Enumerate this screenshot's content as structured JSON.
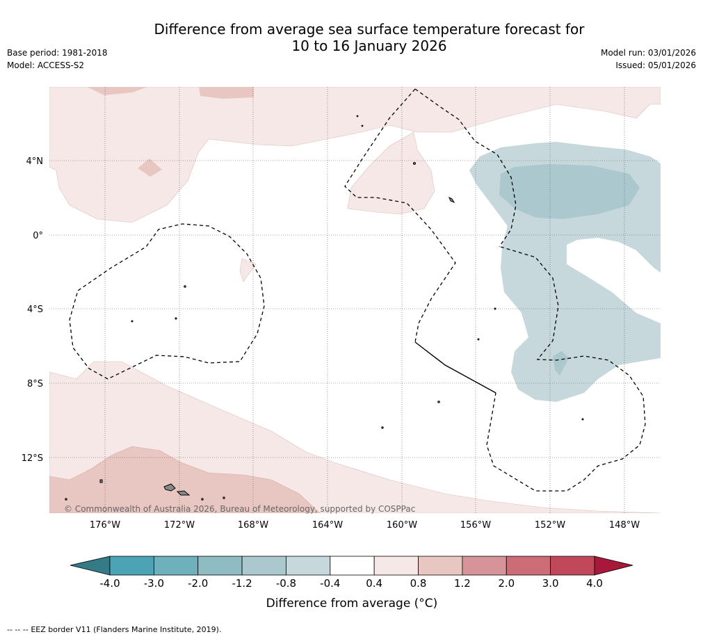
{
  "title_line1": "Difference from average sea surface temperature forecast for",
  "title_line2": "10 to 16 January 2026",
  "base_period": "Base period: 1981-2018",
  "model": "Model: ACCESS-S2",
  "model_run": "Model run: 03/01/2026",
  "issued": "Issued: 05/01/2026",
  "copyright": "© Commonwealth of Australia 2026, Bureau of Meteorology, supported by COSPPac",
  "lat_labels": [
    "4°N",
    "0°",
    "4°S",
    "8°S",
    "12°S"
  ],
  "lon_labels": [
    "176°W",
    "172°W",
    "168°W",
    "164°W",
    "160°W",
    "156°W",
    "152°W",
    "148°W"
  ],
  "colorbar": {
    "ticks": [
      "-4.0",
      "-3.0",
      "-2.0",
      "-1.2",
      "-0.8",
      "-0.4",
      "0.4",
      "0.8",
      "1.2",
      "2.0",
      "3.0",
      "4.0"
    ],
    "colors": [
      "#4ba3b4",
      "#6fb0bd",
      "#8fbbc2",
      "#abc8ce",
      "#c6d8dc",
      "#ffffff",
      "#f5e8e6",
      "#e8c6c1",
      "#d7939a",
      "#cb6c76",
      "#c0485a"
    ],
    "low_extend_color": "#357a87",
    "high_extend_color": "#a8183a",
    "label": "Difference from average (°C)"
  },
  "legend": {
    "symbol": "-- -- --",
    "text": "EEZ border V11 (Flanders Marine Institute, 2019)."
  }
}
